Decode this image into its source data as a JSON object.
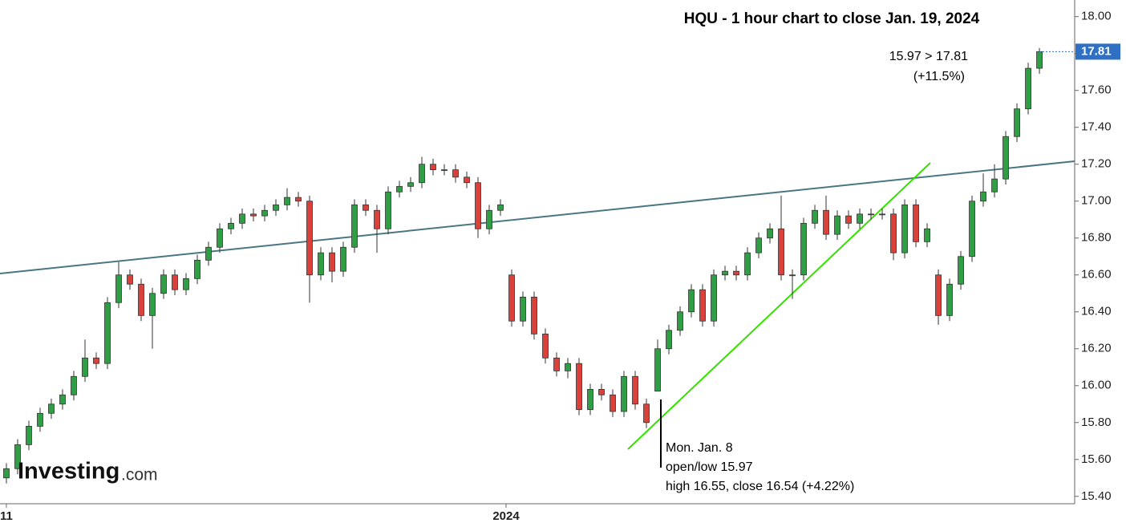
{
  "chart_data": {
    "type": "candlestick",
    "title": "HQU - 1 hour chart to close Jan. 19, 2024",
    "annotations": [
      "15.97 > 17.81",
      "(+11.5%)",
      "Mon. Jan. 8",
      "open/low 15.97",
      "high 16.55, close 16.54 (+4.22%)"
    ],
    "open": [
      15.5,
      15.55,
      15.68,
      15.78,
      15.85,
      15.9,
      15.95,
      16.05,
      16.15,
      16.12,
      16.45,
      16.6,
      16.55,
      16.38,
      16.5,
      16.6,
      16.52,
      16.58,
      16.68,
      16.75,
      16.85,
      16.88,
      16.93,
      16.92,
      16.95,
      16.98,
      17.02,
      17.0,
      16.6,
      16.72,
      16.62,
      16.75,
      16.98,
      16.95,
      16.85,
      17.05,
      17.08,
      17.1,
      17.2,
      17.17,
      17.17,
      17.13,
      17.1,
      16.85,
      16.95,
      16.6,
      16.35,
      16.48,
      16.28,
      16.15,
      16.08,
      16.12,
      15.87,
      15.98,
      15.95,
      15.86,
      16.05,
      15.9,
      15.97,
      16.2,
      16.3,
      16.4,
      16.52,
      16.35,
      16.6,
      16.62,
      16.6,
      16.72,
      16.8,
      16.85,
      16.6,
      16.6,
      16.88,
      16.95,
      16.82,
      16.92,
      16.88,
      16.93,
      16.93,
      16.93,
      16.72,
      16.98,
      16.78,
      16.6,
      16.38,
      16.55,
      16.7,
      17.0,
      17.05,
      17.12,
      17.35,
      17.5,
      17.72
    ],
    "high": [
      15.58,
      15.71,
      15.81,
      15.88,
      15.93,
      15.98,
      16.08,
      16.25,
      16.18,
      16.48,
      16.67,
      16.63,
      16.58,
      16.53,
      16.63,
      16.63,
      16.61,
      16.71,
      16.78,
      16.88,
      16.91,
      16.96,
      16.96,
      16.98,
      17.01,
      17.07,
      17.05,
      17.03,
      16.75,
      16.75,
      16.78,
      17.01,
      17.01,
      16.98,
      17.08,
      17.11,
      17.13,
      17.24,
      17.23,
      17.2,
      17.2,
      17.16,
      17.13,
      16.98,
      17.01,
      16.63,
      16.51,
      16.51,
      16.31,
      16.18,
      16.15,
      16.15,
      16.01,
      16.01,
      15.98,
      16.08,
      16.08,
      15.93,
      16.25,
      16.33,
      16.43,
      16.55,
      16.55,
      16.63,
      16.65,
      16.65,
      16.75,
      16.83,
      16.88,
      17.03,
      16.63,
      16.91,
      16.98,
      17.03,
      16.95,
      16.95,
      16.96,
      16.96,
      16.96,
      16.96,
      17.01,
      17.01,
      16.88,
      16.63,
      16.58,
      16.73,
      17.03,
      17.15,
      17.2,
      17.38,
      17.53,
      17.75,
      17.83
    ],
    "low": [
      15.47,
      15.52,
      15.65,
      15.75,
      15.82,
      15.87,
      15.92,
      16.02,
      16.09,
      16.09,
      16.42,
      16.52,
      16.35,
      16.2,
      16.47,
      16.49,
      16.49,
      16.55,
      16.65,
      16.72,
      16.82,
      16.85,
      16.89,
      16.89,
      16.92,
      16.95,
      16.97,
      16.45,
      16.57,
      16.56,
      16.59,
      16.72,
      16.92,
      16.72,
      16.82,
      17.02,
      17.05,
      17.07,
      17.14,
      17.14,
      17.1,
      17.07,
      16.8,
      16.82,
      16.92,
      16.32,
      16.32,
      16.25,
      16.12,
      16.05,
      16.04,
      15.84,
      15.84,
      15.92,
      15.83,
      15.83,
      15.87,
      15.77,
      15.97,
      16.17,
      16.27,
      16.37,
      16.32,
      16.32,
      16.57,
      16.57,
      16.57,
      16.69,
      16.77,
      16.57,
      16.47,
      16.57,
      16.85,
      16.79,
      16.79,
      16.85,
      16.85,
      16.9,
      16.9,
      16.68,
      16.69,
      16.75,
      16.75,
      16.33,
      16.35,
      16.52,
      16.67,
      16.97,
      17.02,
      17.09,
      17.32,
      17.47,
      17.69
    ],
    "close": [
      15.55,
      15.68,
      15.78,
      15.85,
      15.9,
      15.95,
      16.05,
      16.15,
      16.12,
      16.45,
      16.6,
      16.55,
      16.38,
      16.5,
      16.6,
      16.52,
      16.58,
      16.68,
      16.75,
      16.85,
      16.88,
      16.93,
      16.92,
      16.95,
      16.98,
      17.02,
      17.0,
      16.6,
      16.72,
      16.62,
      16.75,
      16.98,
      16.95,
      16.85,
      17.05,
      17.08,
      17.1,
      17.2,
      17.17,
      17.17,
      17.13,
      17.1,
      16.85,
      16.95,
      16.98,
      16.35,
      16.48,
      16.28,
      16.15,
      16.08,
      16.12,
      15.87,
      15.98,
      15.95,
      15.86,
      16.05,
      15.9,
      15.8,
      16.2,
      16.3,
      16.4,
      16.52,
      16.35,
      16.6,
      16.62,
      16.6,
      16.72,
      16.8,
      16.85,
      16.6,
      16.6,
      16.88,
      16.95,
      16.82,
      16.92,
      16.88,
      16.93,
      16.93,
      16.93,
      16.72,
      16.98,
      16.78,
      16.85,
      16.38,
      16.55,
      16.7,
      17.0,
      17.05,
      17.12,
      17.35,
      17.5,
      17.72,
      17.81
    ],
    "up_color": "#2f9e44",
    "down_color": "#d9413a",
    "xlim": [
      -0.57,
      95.14
    ],
    "xticks": [
      {
        "value": 0,
        "label": "11"
      },
      {
        "value": 44.5,
        "label": "2024"
      }
    ],
    "ylim": [
      15.36,
      18.09
    ],
    "yticks": [
      {
        "value": 15.4,
        "label": "15.40"
      },
      {
        "value": 15.6,
        "label": "15.60"
      },
      {
        "value": 15.8,
        "label": "15.80"
      },
      {
        "value": 16,
        "label": "16.00"
      },
      {
        "value": 16.2,
        "label": "16.20"
      },
      {
        "value": 16.4,
        "label": "16.40"
      },
      {
        "value": 16.6,
        "label": "16.60"
      },
      {
        "value": 16.8,
        "label": "16.80"
      },
      {
        "value": 17,
        "label": "17.00"
      },
      {
        "value": 17.2,
        "label": "17.20"
      },
      {
        "value": 17.4,
        "label": "17.40"
      },
      {
        "value": 17.6,
        "label": "17.60"
      },
      {
        "value": 17.8,
        "label": "17.80"
      },
      {
        "value": 18,
        "label": "18.00"
      }
    ]
  },
  "logo": {
    "name": "Investing",
    "suffix": ".com"
  }
}
